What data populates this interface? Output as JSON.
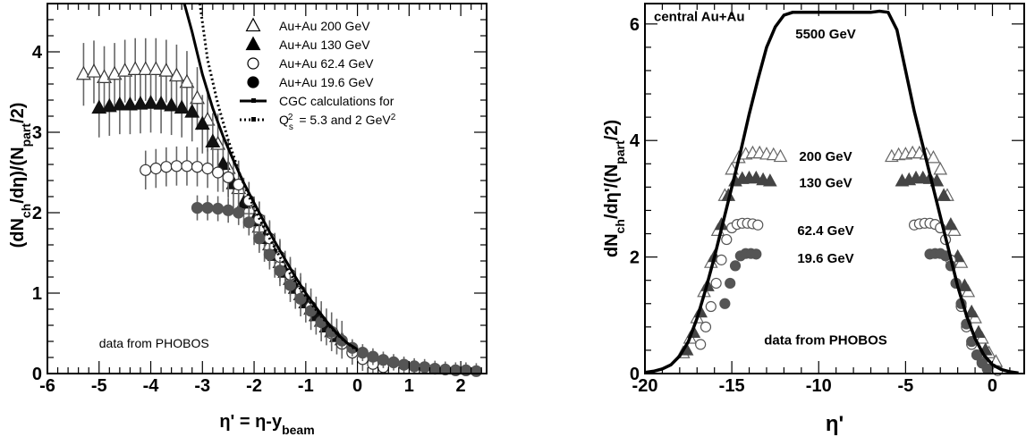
{
  "chart_data": [
    {
      "type": "scatter",
      "xlabel": "η' = η-y",
      "xlabel_sub": "beam",
      "ylabel_parts": [
        "(dN",
        "ch",
        "/dη)/(N",
        "part",
        "/2)"
      ],
      "xlim": [
        -6,
        2.5
      ],
      "ylim": [
        0,
        4.6
      ],
      "xticks": [
        -6,
        -5,
        -4,
        -3,
        -2,
        -1,
        0,
        1,
        2
      ],
      "yticks": [
        0,
        1,
        2,
        3,
        4
      ],
      "annotation": "data from PHOBOS",
      "legend_position": "top-right",
      "legend": [
        {
          "text": "Au+Au 200 GeV",
          "marker": "triangle-open"
        },
        {
          "text": "Au+Au 130 GeV",
          "marker": "triangle-filled"
        },
        {
          "text": "Au+Au 62.4 GeV",
          "marker": "circle-open"
        },
        {
          "text": "Au+Au 19.6 GeV",
          "marker": "circle-filled"
        },
        {
          "text": "CGC calculations for",
          "marker": "line-solid"
        },
        {
          "text": "= 5.3 and 2 GeV",
          "prefix": "Q",
          "prefix_sub": "s",
          "prefix_sup": "2",
          "suffix_sup": "2",
          "marker": "line-dotted"
        }
      ],
      "series": [
        {
          "name": "Au+Au 200 GeV",
          "marker": "triangle-open",
          "err": 0.3,
          "x": [
            -5.3,
            -5.1,
            -4.9,
            -4.7,
            -4.5,
            -4.3,
            -4.1,
            -3.9,
            -3.7,
            -3.5,
            -3.3,
            -3.1,
            -2.9,
            -2.7,
            -2.5,
            -2.3,
            -2.1,
            -1.9,
            -1.7,
            -1.5,
            -1.3,
            -1.1,
            -0.9,
            -0.7,
            -0.5,
            -0.3
          ],
          "y": [
            3.72,
            3.75,
            3.68,
            3.72,
            3.76,
            3.78,
            3.78,
            3.78,
            3.76,
            3.7,
            3.62,
            3.42,
            3.15,
            2.85,
            2.55,
            2.3,
            2.05,
            1.82,
            1.6,
            1.38,
            1.17,
            0.98,
            0.8,
            0.65,
            0.52,
            0.42
          ]
        },
        {
          "name": "Au+Au 130 GeV",
          "marker": "triangle-filled",
          "err": 0.28,
          "x": [
            -5.0,
            -4.8,
            -4.6,
            -4.4,
            -4.2,
            -4.0,
            -3.8,
            -3.6,
            -3.4,
            -3.2,
            -3.0,
            -2.8,
            -2.6,
            -2.4,
            -2.2,
            -2.0,
            -1.8,
            -1.6,
            -1.4,
            -1.2,
            -1.0,
            -0.8,
            -0.6,
            -0.4
          ],
          "y": [
            3.3,
            3.32,
            3.34,
            3.34,
            3.35,
            3.36,
            3.35,
            3.33,
            3.3,
            3.25,
            3.1,
            2.88,
            2.6,
            2.36,
            2.12,
            1.9,
            1.68,
            1.47,
            1.26,
            1.06,
            0.88,
            0.72,
            0.58,
            0.46
          ]
        },
        {
          "name": "Au+Au 62.4 GeV",
          "marker": "circle-open",
          "err": 0.2,
          "x": [
            -4.1,
            -3.9,
            -3.7,
            -3.5,
            -3.3,
            -3.1,
            -2.9,
            -2.7,
            -2.5,
            -2.3,
            -2.1,
            -1.9,
            -1.7,
            -1.5,
            -1.3,
            -1.1,
            -0.9,
            -0.7,
            -0.5,
            -0.3,
            -0.1,
            0.1,
            0.3,
            0.5
          ],
          "y": [
            2.53,
            2.55,
            2.57,
            2.58,
            2.58,
            2.57,
            2.55,
            2.5,
            2.44,
            2.35,
            2.15,
            1.92,
            1.68,
            1.45,
            1.23,
            1.02,
            0.83,
            0.65,
            0.5,
            0.37,
            0.26,
            0.18,
            0.12,
            0.08
          ]
        },
        {
          "name": "Au+Au 19.6 GeV",
          "marker": "circle-filled",
          "err": 0.14,
          "x": [
            -3.1,
            -2.9,
            -2.7,
            -2.5,
            -2.3,
            -2.1,
            -1.9,
            -1.7,
            -1.5,
            -1.3,
            -1.1,
            -0.9,
            -0.7,
            -0.5,
            -0.3,
            -0.1,
            0.1,
            0.3,
            0.5,
            0.7,
            0.9,
            1.1,
            1.3,
            1.5,
            1.7,
            1.9,
            2.1,
            2.3
          ],
          "y": [
            2.06,
            2.06,
            2.05,
            2.03,
            2.0,
            1.88,
            1.68,
            1.48,
            1.28,
            1.1,
            0.93,
            0.78,
            0.64,
            0.52,
            0.41,
            0.32,
            0.26,
            0.21,
            0.17,
            0.14,
            0.11,
            0.09,
            0.08,
            0.06,
            0.05,
            0.04,
            0.04,
            0.03
          ]
        },
        {
          "name": "CGC calculations for",
          "marker": "line-solid",
          "x": [
            -3.35,
            -3.2,
            -3.0,
            -2.8,
            -2.6,
            -2.4,
            -2.2,
            -2.0,
            -1.8,
            -1.6,
            -1.4,
            -1.2,
            -1.0,
            -0.8,
            -0.6,
            -0.4,
            -0.2,
            0.0
          ],
          "y": [
            4.6,
            4.25,
            3.72,
            3.3,
            2.95,
            2.65,
            2.37,
            2.12,
            1.88,
            1.64,
            1.42,
            1.2,
            1.0,
            0.82,
            0.65,
            0.5,
            0.38,
            0.3
          ]
        },
        {
          "name": "Q_s^2 = 5.3 and 2 GeV^2",
          "marker": "line-dotted",
          "x": [
            -3.05,
            -2.9,
            -2.7,
            -2.5,
            -2.3,
            -2.1,
            -1.9,
            -1.7,
            -1.5,
            -1.3,
            -1.1,
            -0.9,
            -0.7,
            -0.5,
            -0.3,
            -0.1,
            0.0
          ],
          "y": [
            4.6,
            3.9,
            3.35,
            2.9,
            2.52,
            2.2,
            1.93,
            1.68,
            1.45,
            1.24,
            1.05,
            0.87,
            0.71,
            0.56,
            0.43,
            0.33,
            0.28
          ]
        }
      ]
    },
    {
      "type": "scatter",
      "xlabel": "η'",
      "ylabel_parts": [
        "dN",
        "ch",
        "/dη'/(N",
        "part",
        "/2)"
      ],
      "xlim": [
        -20,
        2.6
      ],
      "ylim": [
        0,
        6.35
      ],
      "xticks": [
        -20,
        -15,
        -10,
        -5,
        0
      ],
      "yticks": [
        0,
        2,
        4,
        6
      ],
      "annotations": [
        {
          "text": "central Au+Au",
          "x": -20,
          "y": 6.05
        },
        {
          "text": "5500 GeV",
          "x": -9.6,
          "y": 5.75
        },
        {
          "text": "200 GeV",
          "x": -9.6,
          "y": 3.65
        },
        {
          "text": "130 GeV",
          "x": -9.6,
          "y": 3.2
        },
        {
          "text": "62.4 GeV",
          "x": -9.6,
          "y": 2.38
        },
        {
          "text": "19.6 GeV",
          "x": -9.6,
          "y": 1.9
        },
        {
          "text": "data from PHOBOS",
          "x": -9.6,
          "y": 0.5
        }
      ],
      "series": [
        {
          "name": "5500 GeV",
          "marker": "line-solid",
          "x": [
            -20,
            -19.5,
            -19,
            -18.5,
            -18,
            -17.5,
            -17,
            -16.5,
            -16,
            -15.5,
            -15,
            -14.5,
            -14,
            -13.5,
            -13,
            -12.5,
            -12,
            -11.5,
            -11,
            -10,
            -9,
            -8,
            -7,
            -6.5,
            -6,
            -5.5,
            -5,
            -4.5,
            -4,
            -3.5,
            -3,
            -2.5,
            -2,
            -1.5,
            -1,
            -0.5,
            0,
            0.5,
            1,
            1.5,
            2,
            2.4
          ],
          "y": [
            0.02,
            0.04,
            0.08,
            0.15,
            0.3,
            0.55,
            0.95,
            1.45,
            2.0,
            2.6,
            3.2,
            3.8,
            4.45,
            5.05,
            5.6,
            5.95,
            6.15,
            6.2,
            6.2,
            6.2,
            6.2,
            6.2,
            6.2,
            6.22,
            6.2,
            5.9,
            5.2,
            4.5,
            3.9,
            3.3,
            2.7,
            2.1,
            1.5,
            1.0,
            0.6,
            0.32,
            0.15,
            0.07,
            0.03,
            0.01,
            0.0,
            0.0
          ]
        },
        {
          "name": "200 GeV",
          "marker": "triangle-open",
          "x": [
            -17.8,
            -17.4,
            -17.0,
            -16.6,
            -16.2,
            -15.8,
            -15.4,
            -15.0,
            -14.6,
            -14.2,
            -13.8,
            -13.4,
            -13.0,
            -12.6,
            -12.2,
            -5.8,
            -5.4,
            -5.0,
            -4.6,
            -4.2,
            -3.8,
            -3.4,
            -3.0,
            -2.6,
            -2.2,
            -1.8,
            -1.4,
            -1.0,
            -0.6,
            -0.2,
            0.2
          ],
          "y": [
            0.35,
            0.6,
            0.95,
            1.4,
            1.9,
            2.45,
            3.05,
            3.5,
            3.7,
            3.76,
            3.78,
            3.78,
            3.76,
            3.75,
            3.72,
            3.72,
            3.75,
            3.76,
            3.78,
            3.78,
            3.76,
            3.7,
            3.5,
            3.05,
            2.45,
            1.9,
            1.4,
            0.95,
            0.6,
            0.35,
            0.2
          ]
        },
        {
          "name": "130 GeV",
          "marker": "triangle-filled",
          "x": [
            -17.6,
            -17.2,
            -16.8,
            -16.4,
            -16.0,
            -15.6,
            -15.2,
            -14.8,
            -14.4,
            -14.0,
            -13.6,
            -13.2,
            -12.8,
            -5.2,
            -4.8,
            -4.4,
            -4.0,
            -3.6,
            -3.2,
            -2.8,
            -2.4,
            -2.0,
            -1.6,
            -1.2,
            -0.8,
            -0.4
          ],
          "y": [
            0.4,
            0.7,
            1.05,
            1.5,
            2.0,
            2.55,
            3.05,
            3.3,
            3.34,
            3.35,
            3.35,
            3.32,
            3.3,
            3.3,
            3.32,
            3.35,
            3.35,
            3.34,
            3.3,
            3.05,
            2.55,
            2.0,
            1.5,
            1.05,
            0.7,
            0.4
          ]
        },
        {
          "name": "62.4 GeV",
          "marker": "circle-open",
          "x": [
            -16.8,
            -16.5,
            -16.2,
            -15.9,
            -15.6,
            -15.3,
            -15.0,
            -14.7,
            -14.4,
            -14.1,
            -13.8,
            -13.5,
            -4.5,
            -4.2,
            -3.9,
            -3.6,
            -3.3,
            -3.0,
            -2.7,
            -2.4,
            -2.1,
            -1.8,
            -1.5,
            -1.2,
            -0.9,
            -0.6,
            -0.3,
            0.0,
            0.3
          ],
          "y": [
            0.5,
            0.8,
            1.15,
            1.55,
            1.95,
            2.3,
            2.5,
            2.56,
            2.58,
            2.58,
            2.57,
            2.55,
            2.55,
            2.57,
            2.58,
            2.58,
            2.56,
            2.5,
            2.3,
            1.95,
            1.55,
            1.15,
            0.8,
            0.5,
            0.32,
            0.2,
            0.12,
            0.08,
            0.05
          ]
        },
        {
          "name": "19.6 GeV",
          "marker": "circle-filled",
          "x": [
            -15.4,
            -15.1,
            -14.8,
            -14.5,
            -14.2,
            -13.9,
            -13.6,
            -3.6,
            -3.3,
            -3.0,
            -2.7,
            -2.4,
            -2.1,
            -1.8,
            -1.5,
            -1.2,
            -0.9,
            -0.6,
            -0.3
          ],
          "y": [
            1.2,
            1.55,
            1.85,
            2.02,
            2.06,
            2.06,
            2.05,
            2.05,
            2.06,
            2.06,
            2.02,
            1.85,
            1.55,
            1.2,
            0.85,
            0.55,
            0.32,
            0.18,
            0.08
          ]
        }
      ]
    }
  ]
}
